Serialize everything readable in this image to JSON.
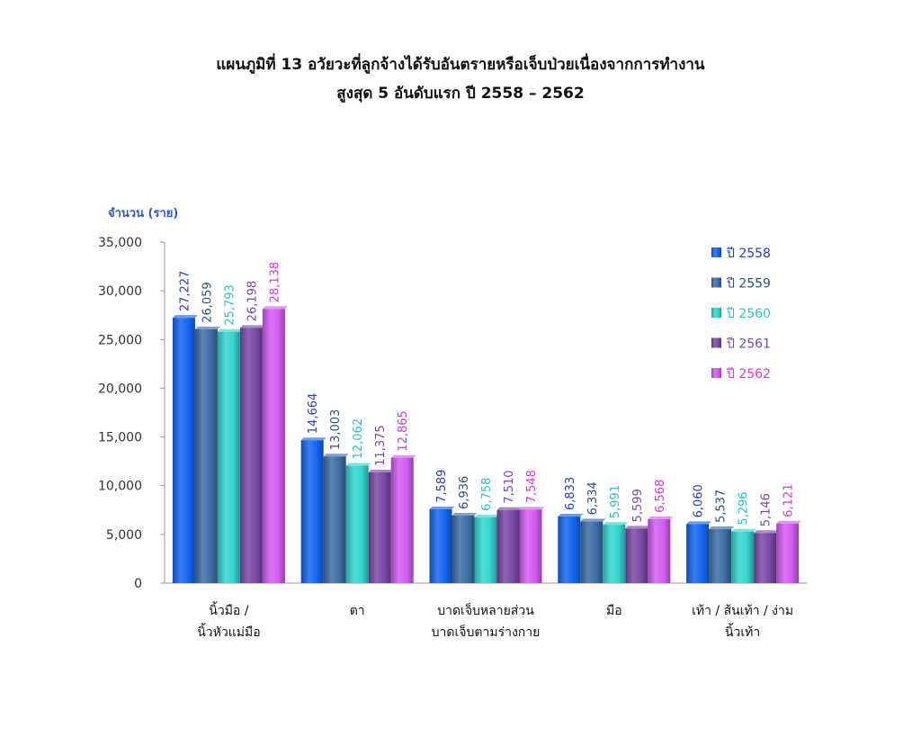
{
  "page": {
    "title_line1": "แผนภูมิที่ 13  อวัยวะที่ลูกจ้างได้รับอันตรายหรือเจ็บป่วยเนื่องจากการทำงาน",
    "title_line2": "สูงสุด 5 อันดับแรก  ปี 2558 – 2562"
  },
  "chart_data": {
    "type": "bar",
    "ylabel": "จำนวน (ราย)",
    "xlabel": "",
    "ylim": [
      0,
      35000
    ],
    "yticks": [
      0,
      5000,
      10000,
      15000,
      20000,
      25000,
      30000,
      35000
    ],
    "ytick_labels": [
      "0",
      "5,000",
      "10,000",
      "15,000",
      "20,000",
      "25,000",
      "30,000",
      "35,000"
    ],
    "categories": [
      [
        "นิ้วมือ /",
        "นิ้วหัวแม่มือ"
      ],
      [
        "ตา"
      ],
      [
        "บาดเจ็บหลายส่วน",
        "บาดเจ็บตามร่างกาย"
      ],
      [
        "มือ"
      ],
      [
        "เท้า / ส้นเท้า / ง่าม",
        "นิ้วเท้า"
      ]
    ],
    "series": [
      {
        "name": "ปี 2558",
        "color": "#1467f0",
        "values": [
          27227,
          14664,
          7589,
          6833,
          6060
        ],
        "labels": [
          "27,227",
          "14,664",
          "7,589",
          "6,833",
          "6,060"
        ]
      },
      {
        "name": "ปี 2559",
        "color": "#3d6ea6",
        "values": [
          26059,
          13003,
          6936,
          6334,
          5537
        ],
        "labels": [
          "26,059",
          "13,003",
          "6,936",
          "6,334",
          "5,537"
        ]
      },
      {
        "name": "ปี 2560",
        "color": "#33d6cf",
        "values": [
          25793,
          12062,
          6758,
          5991,
          5296
        ],
        "labels": [
          "25,793",
          "12,062",
          "6,758",
          "5,991",
          "5,296"
        ]
      },
      {
        "name": "ปี 2561",
        "color": "#7b4aa6",
        "values": [
          26198,
          11375,
          7510,
          5599,
          5146
        ],
        "labels": [
          "26,198",
          "11,375",
          "7,510",
          "5,599",
          "5,146"
        ]
      },
      {
        "name": "ปี 2562",
        "color": "#d35cf2",
        "values": [
          28138,
          12865,
          7548,
          6568,
          6121
        ],
        "labels": [
          "28,138",
          "12,865",
          "7,548",
          "6,568",
          "6,121"
        ]
      }
    ],
    "label_colors": [
      "#2a3fb0",
      "#2f4f7a",
      "#2fc2c4",
      "#7a46a8",
      "#d23bd8"
    ],
    "legend_position": "top-right",
    "grid": false
  }
}
